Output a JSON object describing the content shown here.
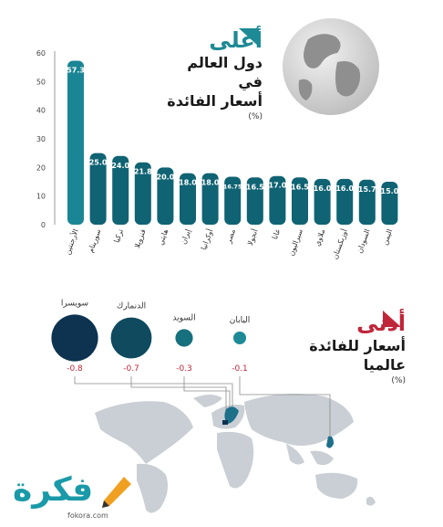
{
  "header": {
    "high_title": "أعلى",
    "high_sub_1": "دول العالم في",
    "high_sub_2": "أسعار الفائدة",
    "high_unit": "(%)"
  },
  "low_section": {
    "title": "أدنى",
    "sub_1": "أسعار للفائدة",
    "sub_2": "عالميا",
    "unit": "(%)"
  },
  "logo": {
    "text": "فكرة",
    "url": "fokora.com"
  },
  "colors": {
    "teal": "#1d8a95",
    "bar_dark": "#0f5d6c",
    "navy": "#0d3350",
    "red": "#c0263a"
  },
  "chart_data": [
    {
      "type": "bar",
      "categories": [
        "الأرجنتين",
        "سورينام",
        "تركيا",
        "فنزويلا",
        "هايتي",
        "إيران",
        "أوكرانيا",
        "مصر",
        "أنجولا",
        "غانا",
        "سيراليون",
        "ملاوي",
        "أوزبكستان",
        "السودان",
        "اليمن"
      ],
      "values": [
        57.3,
        25.0,
        24.0,
        21.8,
        20.0,
        18.0,
        18.0,
        16.75,
        16.5,
        17.0,
        16.5,
        16.0,
        16.0,
        15.7,
        15.0
      ],
      "value_labels": [
        "57.3",
        "25.0",
        "24.0",
        "21.8",
        "20.0",
        "18.0",
        "18.0",
        "16.75",
        "16.5",
        "17.0",
        "16.5",
        "16.0",
        "16.0",
        "15.7",
        "15.0"
      ],
      "yticks": [
        0,
        10,
        20,
        30,
        40,
        50,
        60
      ],
      "ylim": [
        0,
        60
      ]
    },
    {
      "type": "scatter",
      "categories": [
        "سويسرا",
        "الدنمارك",
        "السويد",
        "اليابان"
      ],
      "values": [
        -0.8,
        -0.7,
        -0.3,
        -0.1
      ],
      "value_labels": [
        "-0.8",
        "-0.7",
        "-0.3",
        "-0.1"
      ]
    }
  ]
}
